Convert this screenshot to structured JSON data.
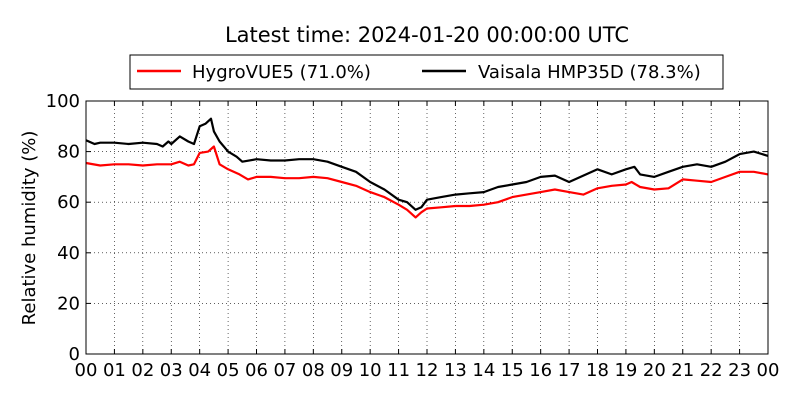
{
  "chart_data": {
    "type": "line",
    "title": "Latest time: 2024-01-20 00:00:00 UTC",
    "xlabel": "",
    "ylabel": "Relative humidity (%)",
    "xlim": [
      0,
      24
    ],
    "ylim": [
      0,
      100
    ],
    "grid": true,
    "legend_position": "top",
    "x_tick_labels": [
      "00",
      "01",
      "02",
      "03",
      "04",
      "05",
      "06",
      "07",
      "08",
      "09",
      "10",
      "11",
      "12",
      "13",
      "14",
      "15",
      "16",
      "17",
      "18",
      "19",
      "20",
      "21",
      "22",
      "23",
      "00"
    ],
    "y_tick_labels": [
      "0",
      "20",
      "40",
      "60",
      "80",
      "100"
    ],
    "series": [
      {
        "name": "HygroVUE5 (71.0%)",
        "color": "#ff0000",
        "x": [
          0,
          0.5,
          1,
          1.5,
          2,
          2.5,
          3,
          3.3,
          3.6,
          3.8,
          4,
          4.3,
          4.5,
          4.7,
          5,
          5.4,
          5.7,
          6,
          6.5,
          7,
          7.5,
          8,
          8.5,
          9,
          9.5,
          10,
          10.5,
          11,
          11.3,
          11.6,
          11.8,
          12,
          12.5,
          13,
          13.5,
          14,
          14.5,
          15,
          15.5,
          16,
          16.5,
          17,
          17.5,
          18,
          18.5,
          19,
          19.2,
          19.5,
          20,
          20.5,
          21,
          21.5,
          22,
          22.5,
          23,
          23.5,
          24
        ],
        "y": [
          75.5,
          74.5,
          75,
          75,
          74.5,
          75,
          75,
          76,
          74.5,
          75,
          79.5,
          80,
          82,
          75,
          73,
          71,
          69,
          70,
          70,
          69.5,
          69.5,
          70,
          69.5,
          68,
          66.5,
          64,
          62,
          59,
          57,
          54,
          56,
          57.5,
          58,
          58.5,
          58.5,
          59,
          60,
          62,
          63,
          64,
          65,
          64,
          63,
          65.5,
          66.5,
          67,
          68,
          66,
          65,
          65.5,
          69,
          68.5,
          68,
          70,
          72,
          72,
          71
        ]
      },
      {
        "name": "Vaisala HMP35D (78.3%)",
        "color": "#000000",
        "x": [
          0,
          0.3,
          0.5,
          1,
          1.5,
          2,
          2.5,
          2.7,
          2.9,
          3,
          3.3,
          3.6,
          3.8,
          4,
          4.2,
          4.4,
          4.5,
          4.7,
          5,
          5.3,
          5.5,
          6,
          6.5,
          7,
          7.5,
          8,
          8.5,
          9,
          9.5,
          10,
          10.5,
          11,
          11.3,
          11.6,
          11.8,
          12,
          12.5,
          13,
          13.5,
          14,
          14.5,
          15,
          15.5,
          16,
          16.5,
          17,
          17.5,
          18,
          18.5,
          19,
          19.3,
          19.5,
          20,
          20.5,
          21,
          21.5,
          22,
          22.5,
          23,
          23.5,
          24
        ],
        "y": [
          84.5,
          83,
          83.5,
          83.5,
          83,
          83.5,
          83,
          82,
          84,
          83,
          86,
          84,
          83,
          90,
          91,
          93,
          88,
          84,
          80,
          78,
          76,
          77,
          76.5,
          76.5,
          77,
          77,
          76,
          74,
          72,
          68,
          65,
          61,
          60,
          57,
          58,
          61,
          62,
          63,
          63.5,
          64,
          66,
          67,
          68,
          70,
          70.5,
          68,
          70.5,
          73,
          71,
          73,
          74,
          71,
          70,
          72,
          74,
          75,
          74,
          76,
          79,
          80,
          78.3
        ]
      }
    ]
  }
}
